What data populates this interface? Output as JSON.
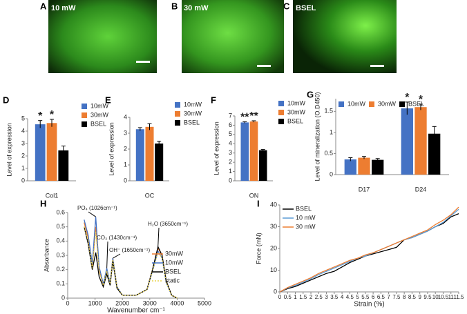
{
  "images": [
    {
      "panel": "A",
      "label": "10 mW"
    },
    {
      "panel": "B",
      "label": "30 mW"
    },
    {
      "panel": "C",
      "label": "BSEL"
    }
  ],
  "chart_data": [
    {
      "panel": "D",
      "type": "bar",
      "ylabel": "Level of expression",
      "categories": [
        "Col1"
      ],
      "ylim": [
        0,
        5
      ],
      "yticks": [
        0,
        1,
        2,
        3,
        4,
        5
      ],
      "legend": "right",
      "series": [
        {
          "name": "10mW",
          "color": "#4472c4",
          "values": [
            4.55
          ],
          "errors": [
            0.3
          ],
          "labels": [
            "*"
          ]
        },
        {
          "name": "30mW",
          "color": "#ed7d31",
          "values": [
            4.65
          ],
          "errors": [
            0.3
          ],
          "labels": [
            "*"
          ]
        },
        {
          "name": "BSEL",
          "color": "#000000",
          "values": [
            2.45
          ],
          "errors": [
            0.35
          ],
          "labels": [
            null
          ]
        }
      ]
    },
    {
      "panel": "E",
      "type": "bar",
      "ylabel": "Level of expression",
      "categories": [
        "OC"
      ],
      "ylim": [
        0,
        4
      ],
      "yticks": [
        0,
        1,
        2,
        3,
        4
      ],
      "legend": "right",
      "series": [
        {
          "name": "10mW",
          "color": "#4472c4",
          "values": [
            3.25
          ],
          "errors": [
            0.1
          ],
          "labels": [
            null
          ]
        },
        {
          "name": "30mW",
          "color": "#ed7d31",
          "values": [
            3.4
          ],
          "errors": [
            0.2
          ],
          "labels": [
            null
          ]
        },
        {
          "name": "BSEL",
          "color": "#000000",
          "values": [
            2.35
          ],
          "errors": [
            0.15
          ],
          "labels": [
            null
          ]
        }
      ]
    },
    {
      "panel": "F",
      "type": "bar",
      "ylabel": "Level of expression",
      "categories": [
        "ON"
      ],
      "ylim": [
        0,
        7
      ],
      "yticks": [
        0,
        1,
        2,
        3,
        4,
        5,
        6,
        7
      ],
      "legend": "right",
      "series": [
        {
          "name": "10mW",
          "color": "#4472c4",
          "values": [
            6.3
          ],
          "errors": [
            0.08
          ],
          "labels": [
            "**"
          ]
        },
        {
          "name": "30mW",
          "color": "#ed7d31",
          "values": [
            6.4
          ],
          "errors": [
            0.08
          ],
          "labels": [
            "**"
          ]
        },
        {
          "name": "BSEL",
          "color": "#000000",
          "values": [
            3.3
          ],
          "errors": [
            0.08
          ],
          "labels": [
            null
          ]
        }
      ]
    },
    {
      "panel": "G",
      "type": "bar",
      "ylabel": "Level of mineralization (O.D450)",
      "categories": [
        "D17",
        "D24"
      ],
      "ylim": [
        0,
        1.8
      ],
      "yticks": [
        0,
        0.5,
        1,
        1.5
      ],
      "legend": "top",
      "series": [
        {
          "name": "10mW",
          "color": "#4472c4",
          "values": [
            0.36,
            1.57
          ],
          "errors": [
            0.04,
            0.15
          ],
          "labels": [
            null,
            "*"
          ]
        },
        {
          "name": "30mW",
          "color": "#ed7d31",
          "values": [
            0.4,
            1.6
          ],
          "errors": [
            0.03,
            0.07
          ],
          "labels": [
            null,
            "*"
          ]
        },
        {
          "name": "BSEL",
          "color": "#000000",
          "values": [
            0.35,
            0.97
          ],
          "errors": [
            0.03,
            0.17
          ],
          "labels": [
            null,
            null
          ]
        }
      ]
    },
    {
      "panel": "H",
      "type": "line",
      "ylabel": "Absorbance",
      "xlabel": "Wavenumber cm⁻¹",
      "xlim": [
        0,
        5000
      ],
      "xticks": [
        0,
        1000,
        2000,
        3000,
        4000,
        5000
      ],
      "ylim": [
        0,
        0.6
      ],
      "yticks": [
        0,
        0.1,
        0.2,
        0.3,
        0.4,
        0.5,
        0.6
      ],
      "legend": "center right",
      "annotations": [
        "PO₄ (1026cm⁻¹)",
        "CO₃ (1430cm⁻¹)",
        "OH⁻ (1650cm⁻¹)",
        "H₂O (3650cm⁻¹)"
      ],
      "x": [
        600,
        750,
        900,
        1026,
        1150,
        1300,
        1430,
        1550,
        1650,
        1800,
        2000,
        2500,
        2900,
        3100,
        3300,
        3450,
        3600,
        3800,
        4000
      ],
      "series": [
        {
          "name": "30mW",
          "color": "#ed7d31",
          "values": [
            0.53,
            0.42,
            0.22,
            0.5,
            0.2,
            0.09,
            0.2,
            0.1,
            0.28,
            0.08,
            0.02,
            0.02,
            0.06,
            0.2,
            0.35,
            0.3,
            0.12,
            0.02,
            0.0
          ]
        },
        {
          "name": "10mW",
          "color": "#4472c4",
          "values": [
            0.55,
            0.44,
            0.24,
            0.57,
            0.22,
            0.1,
            0.21,
            0.1,
            0.28,
            0.08,
            0.02,
            0.02,
            0.06,
            0.19,
            0.33,
            0.28,
            0.11,
            0.02,
            0.0
          ]
        },
        {
          "name": "BSEL",
          "color": "#000000",
          "values": [
            0.5,
            0.38,
            0.2,
            0.32,
            0.15,
            0.08,
            0.17,
            0.09,
            0.26,
            0.07,
            0.02,
            0.02,
            0.06,
            0.2,
            0.36,
            0.3,
            0.12,
            0.02,
            0.0
          ]
        },
        {
          "name": "static",
          "color": "#e8d44d",
          "dash": "dotted",
          "values": [
            0.5,
            0.4,
            0.21,
            0.47,
            0.19,
            0.09,
            0.19,
            0.1,
            0.27,
            0.08,
            0.02,
            0.02,
            0.06,
            0.19,
            0.32,
            0.28,
            0.11,
            0.02,
            0.0
          ]
        }
      ]
    },
    {
      "panel": "I",
      "type": "line",
      "ylabel": "Force (mN)",
      "xlabel": "Strain (%)",
      "xlim": [
        0,
        11.5
      ],
      "xticks": [
        0,
        0.5,
        1,
        1.5,
        2,
        2.5,
        3,
        3.5,
        4,
        4.5,
        5,
        5.5,
        6,
        6.5,
        7,
        7.5,
        8,
        8.5,
        9,
        9.5,
        10,
        10.5,
        11,
        11.5
      ],
      "ylim": [
        0,
        40
      ],
      "yticks": [
        0,
        10,
        20,
        30,
        40
      ],
      "legend": "upper left",
      "x": [
        0,
        0.5,
        1,
        1.5,
        2,
        2.5,
        3,
        3.5,
        4,
        4.5,
        5,
        5.5,
        6,
        6.5,
        7,
        7.5,
        8,
        8.5,
        9,
        9.5,
        10,
        10.5,
        11,
        11.5
      ],
      "series": [
        {
          "name": "BSEL",
          "color": "#000000",
          "values": [
            0,
            1.5,
            2.5,
            4,
            5.5,
            7,
            8.5,
            9.5,
            11.5,
            13.5,
            15,
            16.5,
            17.5,
            18.5,
            19.5,
            20.5,
            24,
            25,
            26.5,
            28,
            30,
            31.5,
            34.5,
            36
          ]
        },
        {
          "name": "10 mW",
          "color": "#5b9bd5",
          "values": [
            0,
            1.8,
            3,
            4.5,
            6,
            8,
            9.5,
            11,
            12.5,
            14,
            15.5,
            16.5,
            18,
            19.5,
            21,
            22.5,
            24,
            25,
            26.5,
            28,
            30,
            32,
            35,
            38
          ]
        },
        {
          "name": "30 mW",
          "color": "#ed7d31",
          "values": [
            0,
            2,
            3.5,
            5,
            6.5,
            8.5,
            10,
            11.5,
            13,
            14.5,
            15.5,
            17,
            18,
            19.5,
            21,
            22.5,
            24,
            25.5,
            27,
            28.5,
            31,
            33,
            35.5,
            39
          ]
        }
      ]
    }
  ]
}
